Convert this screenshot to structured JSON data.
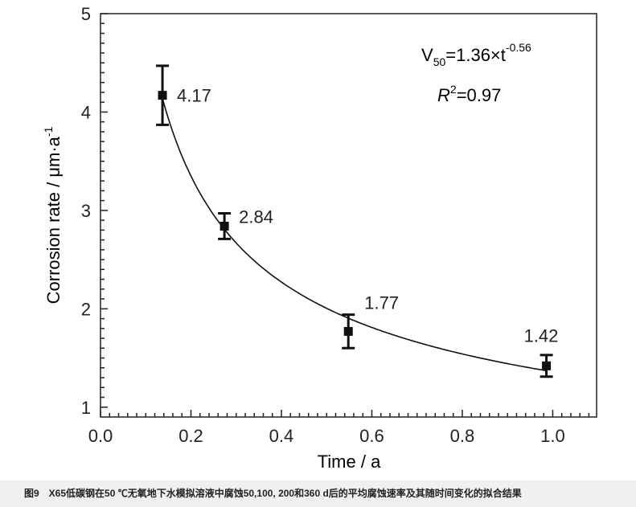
{
  "chart_data": {
    "type": "scatter",
    "xlabel": "Time / a",
    "ylabel": "Corrosion rate / μm·a",
    "ylabel_sup": "-1",
    "xlim": [
      0,
      1.097
    ],
    "ylim": [
      0.9,
      5.0
    ],
    "x_ticks": [
      "0.0",
      "0.2",
      "0.4",
      "0.6",
      "0.8",
      "1.0"
    ],
    "x_tick_values": [
      0,
      0.2,
      0.4,
      0.6,
      0.8,
      1.0
    ],
    "y_ticks": [
      "1",
      "2",
      "3",
      "4",
      "5"
    ],
    "y_tick_values": [
      1,
      2,
      3,
      4,
      5
    ],
    "grid": false,
    "points": [
      {
        "x": 0.137,
        "y": 4.17,
        "err_low": 3.87,
        "err_high": 4.47,
        "label": "4.17"
      },
      {
        "x": 0.274,
        "y": 2.84,
        "err_low": 2.71,
        "err_high": 2.97,
        "label": "2.84"
      },
      {
        "x": 0.548,
        "y": 1.77,
        "err_low": 1.6,
        "err_high": 1.94,
        "label": "1.77"
      },
      {
        "x": 0.986,
        "y": 1.42,
        "err_low": 1.31,
        "err_high": 1.53,
        "label": "1.42"
      }
    ],
    "fit": {
      "type": "power",
      "a": 1.36,
      "b": -0.56,
      "x_range": [
        0.137,
        0.986
      ]
    },
    "annotations": {
      "equation_main": "V",
      "equation_sub": "50",
      "equation_rest": "=1.36×t",
      "equation_exp": "-0.56",
      "r2_R": "R",
      "r2_sup": "2",
      "r2_rest": "=0.97"
    },
    "color": "#111111"
  },
  "caption": "图9　X65低碳钢在50 ℃无氧地下水模拟溶液中腐蚀50,100, 200和360 d后的平均腐蚀速率及其随时间变化的拟合结果"
}
